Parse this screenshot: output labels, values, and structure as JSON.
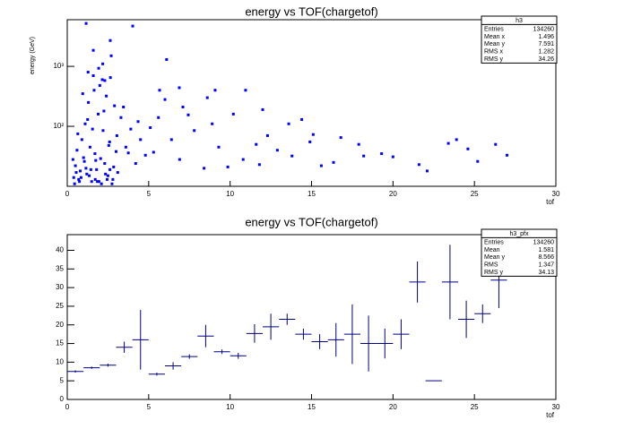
{
  "chart_data": [
    {
      "type": "scatter",
      "title": "energy vs TOF(chargetof)",
      "x_label": "tof",
      "y_label": "energy (GeV)",
      "log_y": true,
      "color": "#0000ff",
      "xlim": [
        0,
        30
      ],
      "xticks": [
        0,
        5,
        10,
        15,
        20,
        25,
        30
      ],
      "ylim": [
        10,
        6000
      ],
      "yticks": [
        {
          "value": 100,
          "label": "10²"
        },
        {
          "value": 1000,
          "label": "10³"
        }
      ],
      "x": [
        1.16,
        4.02,
        2.64,
        1.6,
        6.1,
        1.93,
        2.31,
        5.67,
        6.88,
        9.08,
        10.95,
        6.0,
        7.43,
        13.6,
        11.6,
        15.1,
        17.9,
        20.0,
        23.4,
        23.9,
        26.3,
        27.0,
        25.2,
        21.6,
        18.2,
        16.35,
        13.8,
        11.8,
        9.86,
        8.4,
        6.9,
        5.3,
        0.4,
        0.5,
        0.6,
        0.7,
        0.8,
        0.9,
        1.0,
        1.1,
        1.2,
        1.3,
        1.4,
        1.5,
        1.6,
        1.7,
        1.8,
        1.9,
        2.0,
        2.1,
        2.2,
        2.3,
        2.4,
        2.5,
        2.6,
        2.7,
        2.8,
        2.9,
        3.0,
        3.1,
        0.45,
        0.65,
        0.85,
        1.05,
        1.25,
        1.45,
        1.65,
        1.85,
        2.05,
        2.25,
        2.45,
        2.65,
        2.85,
        3.05,
        3.3,
        3.6,
        3.9,
        4.2,
        4.5,
        4.8,
        0.55,
        0.75,
        0.95,
        1.15,
        1.35,
        1.55,
        1.75,
        1.95,
        2.15,
        2.35,
        2.55,
        2.75,
        0.35,
        1.28,
        1.72,
        2.18,
        2.62,
        3.45,
        3.75,
        4.35,
        5.1,
        5.6,
        6.4,
        7.1,
        7.8,
        8.6,
        9.3,
        10.2,
        10.8,
        12.3,
        12.9,
        14.4,
        15.6,
        16.8,
        19.3,
        22.1,
        24.6,
        14.9,
        12.0,
        8.9
      ],
      "values": [
        5200,
        4700,
        2700,
        1850,
        1300,
        930,
        580,
        400,
        440,
        400,
        400,
        280,
        155,
        110,
        50,
        73,
        50,
        31,
        52,
        60,
        50,
        33,
        26,
        23,
        32,
        25,
        32,
        23,
        21,
        20,
        28,
        37,
        14,
        22,
        40,
        13,
        18,
        60,
        30,
        110,
        16,
        250,
        45,
        12,
        700,
        35,
        19,
        160,
        480,
        11,
        85,
        24,
        320,
        15,
        55,
        1500,
        13,
        220,
        38,
        17,
        11,
        75,
        14,
        26,
        130,
        19,
        400,
        12,
        29,
        180,
        13,
        650,
        21,
        70,
        140,
        45,
        90,
        24,
        60,
        33,
        17,
        12,
        350,
        20,
        15,
        90,
        27,
        12,
        600,
        16,
        48,
        11,
        28,
        800,
        13,
        1100,
        19,
        210,
        36,
        120,
        95,
        140,
        60,
        210,
        85,
        300,
        45,
        160,
        28,
        70,
        40,
        130,
        22,
        65,
        35,
        18,
        42,
        55,
        190,
        110
      ]
    },
    {
      "type": "profile",
      "title": "energy vs TOF(chargetof)",
      "x_label": "tof",
      "color": "#000080",
      "xlim": [
        0,
        30
      ],
      "xticks": [
        0,
        5,
        10,
        15,
        20,
        25,
        30
      ],
      "ylim": [
        0,
        44.2
      ],
      "yticks": [
        0,
        5,
        10,
        15,
        20,
        25,
        30,
        35,
        40
      ],
      "bin_width": 1,
      "x": [
        0.5,
        1.5,
        2.5,
        3.5,
        4.5,
        5.5,
        6.5,
        7.5,
        8.5,
        9.5,
        10.5,
        11.5,
        12.5,
        13.5,
        14.5,
        15.5,
        16.5,
        17.5,
        18.5,
        19.5,
        20.5,
        21.5,
        22.5,
        23.5,
        24.5,
        25.5,
        26.5
      ],
      "values": [
        7.5,
        8.5,
        9.2,
        14,
        16,
        6.8,
        9,
        11.5,
        17,
        12.8,
        11.7,
        17.7,
        19.5,
        21.5,
        17.5,
        15.5,
        16,
        17.5,
        15,
        15,
        17.5,
        31.5,
        5,
        31.5,
        21.5,
        23,
        32
      ],
      "errors": [
        0.3,
        0.3,
        0.4,
        1.5,
        8,
        0.4,
        1,
        0.6,
        3,
        0.6,
        0.8,
        2.5,
        3.5,
        1.5,
        1.5,
        2,
        4.5,
        8,
        7.5,
        4,
        4,
        5.5,
        0,
        10,
        5,
        2.5,
        7.5
      ]
    }
  ],
  "stats": [
    {
      "name": "h3",
      "rows": [
        [
          "Entries",
          "134260"
        ],
        [
          "Mean x",
          "1.496"
        ],
        [
          "Mean y",
          "7.591"
        ],
        [
          "RMS x",
          "1.282"
        ],
        [
          "RMS y",
          "34.26"
        ]
      ]
    },
    {
      "name": "h3_pfx",
      "rows": [
        [
          "Entries",
          "134260"
        ],
        [
          "Mean",
          "1.581"
        ],
        [
          "Mean y",
          "8.566"
        ],
        [
          "RMS",
          "1.347"
        ],
        [
          "RMS y",
          "34.13"
        ]
      ]
    }
  ]
}
